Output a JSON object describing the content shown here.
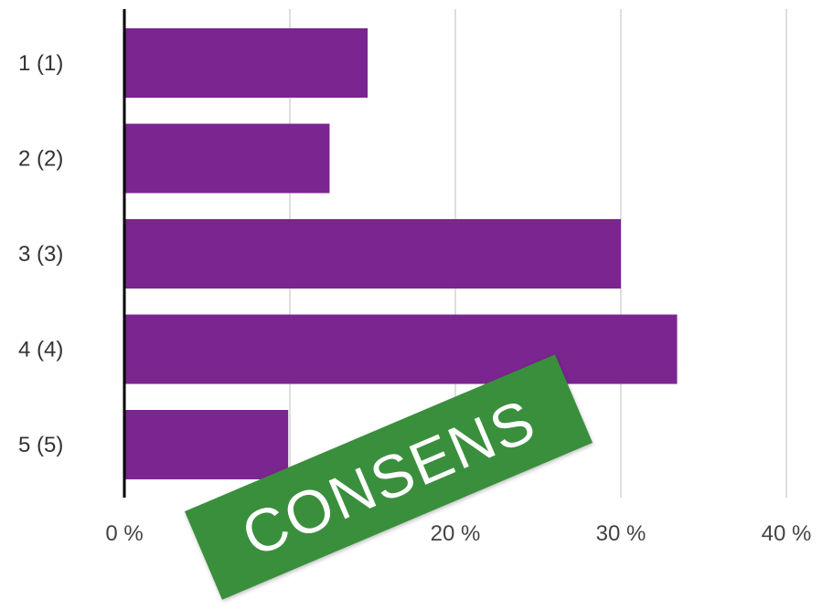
{
  "chart_data": {
    "type": "bar",
    "orientation": "horizontal",
    "categories": [
      "1 (1)",
      "2 (2)",
      "3 (3)",
      "4 (4)",
      "5 (5)"
    ],
    "values": [
      14.7,
      12.4,
      30.0,
      33.4,
      9.9
    ],
    "xlim": [
      0,
      40
    ],
    "xticks": [
      0,
      10,
      20,
      30,
      40
    ],
    "xtick_labels": [
      "0 %",
      "10 %",
      "20 %",
      "30 %",
      "40 %"
    ],
    "grid": true,
    "bar_color": "#7b2590"
  },
  "stamp": {
    "text": "CONSENS",
    "background": "#3a8f3c"
  }
}
